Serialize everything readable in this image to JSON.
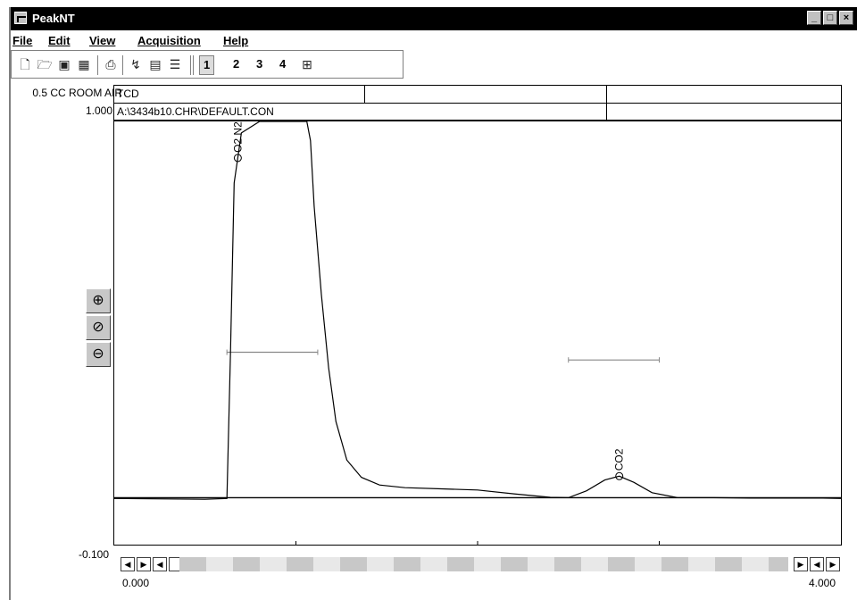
{
  "window": {
    "title": "PeakNT",
    "min": "_",
    "max": "□",
    "close": "×"
  },
  "menu": [
    {
      "label": "File"
    },
    {
      "label": "Edit"
    },
    {
      "label": "View"
    },
    {
      "label": "Acquisition"
    },
    {
      "label": "Help"
    }
  ],
  "toolbar": {
    "channels": [
      "1",
      "2",
      "3",
      "4"
    ]
  },
  "header": {
    "sample_name": "0.5 CC ROOM AIR",
    "scale_top": "1.000",
    "detector": "TCD",
    "file": "A:\\3434b10.CHR\\DEFAULT.CON"
  },
  "chart_data": {
    "type": "line",
    "xlim": [
      0.0,
      4.0
    ],
    "ylim": [
      -0.1,
      1.0
    ],
    "y_tick_labels": [
      "1.000",
      "-0.100"
    ],
    "x_tick_labels": [
      "0.000",
      "4.000"
    ],
    "peaks": [
      {
        "label": "O2 N2",
        "retention": 0.68
      },
      {
        "label": "CO2",
        "retention": 2.78
      }
    ],
    "series": [
      {
        "x": [
          0.0,
          0.5,
          0.62,
          0.64,
          0.66,
          0.7,
          0.8,
          0.9,
          1.0,
          1.06,
          1.08,
          1.1,
          1.14,
          1.18,
          1.22,
          1.28,
          1.36,
          1.46,
          1.6,
          1.8,
          2.0,
          2.2,
          2.4,
          2.5,
          2.6,
          2.7,
          2.78,
          2.86,
          2.96,
          3.1,
          3.3,
          3.5,
          3.7,
          3.9,
          4.0
        ],
        "y": [
          0.02,
          0.018,
          0.02,
          0.4,
          0.84,
          0.97,
          1.0,
          1.0,
          1.0,
          1.0,
          0.95,
          0.78,
          0.55,
          0.36,
          0.22,
          0.12,
          0.075,
          0.055,
          0.048,
          0.045,
          0.042,
          0.032,
          0.023,
          0.022,
          0.04,
          0.068,
          0.078,
          0.062,
          0.035,
          0.022,
          0.022,
          0.021,
          0.021,
          0.021,
          0.02
        ]
      }
    ],
    "baselines": [
      {
        "x": [
          0.0,
          4.0
        ],
        "y": [
          0.022,
          0.022
        ]
      }
    ],
    "integration_marks": [
      {
        "x": [
          0.62,
          1.12
        ],
        "y": [
          0.4,
          0.4
        ]
      },
      {
        "x": [
          2.5,
          3.0
        ],
        "y": [
          0.38,
          0.38
        ]
      }
    ]
  }
}
